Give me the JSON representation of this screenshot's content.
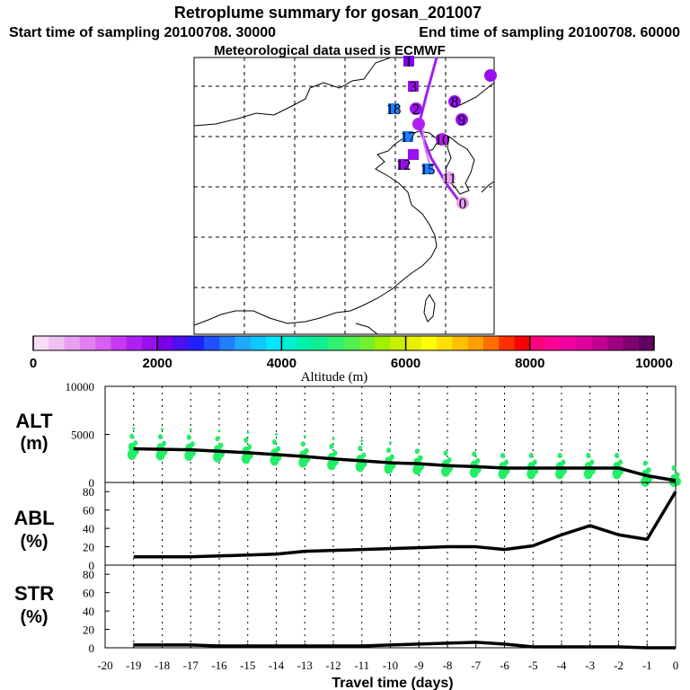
{
  "header": {
    "title": "Retroplume summary for gosan_201007",
    "start": "Start time of sampling 20100708. 30000",
    "end": "End time of sampling 20100708. 60000",
    "met": "Meteorological data used is ECMWF"
  },
  "colorbar": {
    "tick_labels": [
      "0",
      "2000",
      "4000",
      "6000",
      "8000",
      "10000"
    ],
    "label": "Altitude (m)",
    "colors": [
      "#f7ddf7",
      "#f0c0f0",
      "#e8a0f0",
      "#e080f0",
      "#d860f0",
      "#c838f0",
      "#b020f0",
      "#9810f0",
      "#7a00e8",
      "#4a10f0",
      "#2020ff",
      "#2050ff",
      "#2080ff",
      "#20a8ff",
      "#10c8ff",
      "#00e8ff",
      "#00f0d0",
      "#00f0a8",
      "#10f090",
      "#30f070",
      "#50f050",
      "#70f030",
      "#a0f000",
      "#c8f000",
      "#e8f000",
      "#ffff00",
      "#ffe000",
      "#ffc000",
      "#ffa000",
      "#ff7000",
      "#ff3000",
      "#ff0000",
      "#ff0080",
      "#ff0098",
      "#f000a0",
      "#e000a0",
      "#c00090",
      "#a00080",
      "#800070",
      "#600060"
    ]
  },
  "map": {
    "cluster_labels": [
      "1",
      "3",
      "18",
      "2",
      "8",
      "9",
      "17",
      "10",
      "12",
      "15",
      "11",
      "0"
    ]
  },
  "chart_data": [
    {
      "type": "line",
      "name": "ALT",
      "ylabel": "ALT (m)",
      "ylim": [
        0,
        10000
      ],
      "yticks": [
        "0",
        "5000",
        "10000"
      ],
      "x": [
        -19,
        -18,
        -17,
        -16,
        -15,
        -14,
        -13,
        -12,
        -11,
        -10,
        -9,
        -8,
        -7,
        -6,
        -5,
        -4,
        -3,
        -2,
        -1,
        0
      ],
      "values": [
        3500,
        3450,
        3400,
        3250,
        3100,
        2900,
        2700,
        2450,
        2250,
        2050,
        1950,
        1750,
        1650,
        1500,
        1500,
        1500,
        1500,
        1500,
        700,
        200
      ],
      "scatter_color": "#22ee66"
    },
    {
      "type": "line",
      "name": "ABL",
      "ylabel": "ABL (%)",
      "ylim": [
        0,
        90
      ],
      "yticks": [
        "0",
        "20",
        "40",
        "60",
        "80"
      ],
      "x": [
        -19,
        -18,
        -17,
        -16,
        -15,
        -14,
        -13,
        -12,
        -11,
        -10,
        -9,
        -8,
        -7,
        -6,
        -5,
        -4,
        -3,
        -2,
        -1,
        0
      ],
      "values": [
        9,
        9,
        9,
        10,
        11,
        12,
        15,
        16,
        17,
        18,
        19,
        20,
        20,
        17,
        21,
        33,
        43,
        33,
        28,
        80
      ]
    },
    {
      "type": "line",
      "name": "STR",
      "ylabel": "STR (%)",
      "ylim": [
        0,
        90
      ],
      "yticks": [
        "0",
        "20",
        "40",
        "60",
        "80"
      ],
      "x": [
        -19,
        -18,
        -17,
        -16,
        -15,
        -14,
        -13,
        -12,
        -11,
        -10,
        -9,
        -8,
        -7,
        -6,
        -5,
        -4,
        -3,
        -2,
        -1,
        0
      ],
      "values": [
        3,
        3,
        3,
        2,
        2,
        2,
        2,
        2,
        2,
        3,
        4,
        5,
        6,
        4,
        1,
        1,
        1,
        1,
        0,
        0
      ]
    }
  ],
  "xaxis": {
    "label": "Travel time (days)",
    "tick_labels": [
      "-20",
      "-19",
      "-18",
      "-17",
      "-16",
      "-15",
      "-14",
      "-13",
      "-12",
      "-11",
      "-10",
      "-9",
      "-8",
      "-7",
      "-6",
      "-5",
      "-4",
      "-3",
      "-2",
      "-1",
      "0"
    ],
    "tick_values": [
      -20,
      -19,
      -18,
      -17,
      -16,
      -15,
      -14,
      -13,
      -12,
      -11,
      -10,
      -9,
      -8,
      -7,
      -6,
      -5,
      -4,
      -3,
      -2,
      -1,
      0
    ],
    "xlim": [
      -20,
      0
    ]
  },
  "panel_labels": {
    "alt": [
      "ALT",
      "(m)"
    ],
    "abl": [
      "ABL",
      "(%)"
    ],
    "str": [
      "STR",
      "(%)"
    ]
  }
}
